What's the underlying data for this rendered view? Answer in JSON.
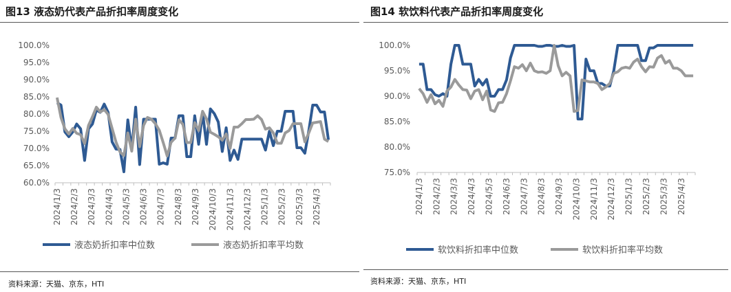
{
  "charts": [
    {
      "figure_title": "图13 液态奶代表产品折扣率周度变化",
      "source": "资料来源：天猫、京东，HTI",
      "legend": [
        "液态奶折扣率中位数",
        "液态奶折扣率平均数"
      ],
      "colors": {
        "median": "#2e5a93",
        "mean": "#9a9a9a",
        "axis": "#bfbfbf",
        "text": "#595959"
      },
      "chart_data": {
        "type": "line",
        "title": "液态奶代表产品折扣率周度变化",
        "xlabel": "",
        "ylabel": "",
        "ylim": [
          0.6,
          1.0
        ],
        "yticks": [
          "60.0%",
          "65.0%",
          "70.0%",
          "75.0%",
          "80.0%",
          "85.0%",
          "90.0%",
          "95.0%",
          "100.0%"
        ],
        "x_tick_labels": [
          "2024/1/3",
          "2024/2/3",
          "2024/3/3",
          "2024/4/3",
          "2024/5/3",
          "2024/6/3",
          "2024/7/3",
          "2024/8/3",
          "2024/9/3",
          "2024/10/3",
          "2024/11/3",
          "2024/12/3",
          "2025/1/3",
          "2025/2/3",
          "2025/3/3",
          "2025/4/3"
        ],
        "n_points": 70,
        "series": [
          {
            "name": "液态奶折扣率中位数",
            "values": [
              0.833,
              0.826,
              0.748,
              0.734,
              0.748,
              0.771,
              0.757,
              0.665,
              0.757,
              0.771,
              0.812,
              0.805,
              0.829,
              0.805,
              0.719,
              0.698,
              0.697,
              0.632,
              0.783,
              0.697,
              0.82,
              0.653,
              0.785,
              0.785,
              0.785,
              0.785,
              0.654,
              0.658,
              0.654,
              0.73,
              0.73,
              0.795,
              0.795,
              0.676,
              0.676,
              0.795,
              0.712,
              0.805,
              0.712,
              0.815,
              0.801,
              0.777,
              0.691,
              0.76,
              0.665,
              0.695,
              0.668,
              0.727,
              0.727,
              0.727,
              0.727,
              0.727,
              0.727,
              0.695,
              0.75,
              0.708,
              0.75,
              0.75,
              0.808,
              0.808,
              0.808,
              0.702,
              0.702,
              0.686,
              0.751,
              0.826,
              0.826,
              0.806,
              0.806,
              0.725
            ]
          },
          {
            "name": "液态奶折扣率平均数",
            "values": [
              0.848,
              0.79,
              0.757,
              0.742,
              0.758,
              0.744,
              0.74,
              0.714,
              0.767,
              0.792,
              0.82,
              0.806,
              0.813,
              0.799,
              0.758,
              0.718,
              0.69,
              0.679,
              0.745,
              0.692,
              0.785,
              0.705,
              0.767,
              0.79,
              0.785,
              0.772,
              0.753,
              0.717,
              0.678,
              0.718,
              0.73,
              0.783,
              0.77,
              0.717,
              0.717,
              0.775,
              0.752,
              0.808,
              0.786,
              0.747,
              0.741,
              0.734,
              0.724,
              0.742,
              0.7,
              0.762,
              0.762,
              0.772,
              0.784,
              0.784,
              0.785,
              0.795,
              0.784,
              0.756,
              0.76,
              0.745,
              0.715,
              0.715,
              0.745,
              0.752,
              0.772,
              0.772,
              0.772,
              0.719,
              0.745,
              0.774,
              0.776,
              0.778,
              0.727,
              0.72
            ]
          }
        ]
      }
    },
    {
      "figure_title": "图14 软饮料代表产品折扣率周度变化",
      "source": "资料来源：天猫、京东，HTI",
      "legend": [
        "软饮料折扣率中位数",
        "软饮料折扣率平均数"
      ],
      "colors": {
        "median": "#2e5a93",
        "mean": "#9a9a9a",
        "axis": "#bfbfbf",
        "text": "#595959"
      },
      "chart_data": {
        "type": "line",
        "title": "软饮料代表产品折扣率周度变化",
        "xlabel": "",
        "ylabel": "",
        "ylim": [
          0.75,
          1.0
        ],
        "yticks": [
          "75.0%",
          "80.0%",
          "85.0%",
          "90.0%",
          "95.0%",
          "100.0%"
        ],
        "x_tick_labels": [
          "2024/1/3",
          "2024/2/3",
          "2024/3/3",
          "2024/4/3",
          "2024/5/3",
          "2024/6/3",
          "2024/7/3",
          "2024/8/3",
          "2024/9/3",
          "2024/10/3",
          "2024/11/3",
          "2024/12/3",
          "2025/1/3",
          "2025/2/3",
          "2025/3/3",
          "2025/4/3"
        ],
        "n_points": 70,
        "series": [
          {
            "name": "软饮料折扣率中位数",
            "values": [
              0.963,
              0.963,
              0.913,
              0.913,
              0.903,
              0.9,
              0.905,
              0.9,
              0.963,
              1.0,
              1.0,
              0.963,
              0.963,
              0.963,
              0.92,
              0.933,
              0.922,
              0.933,
              0.9,
              0.9,
              0.913,
              0.913,
              0.932,
              0.975,
              1.0,
              1.0,
              1.0,
              1.0,
              1.0,
              1.0,
              0.998,
              0.998,
              1.0,
              1.0,
              0.998,
              0.998,
              1.0,
              0.998,
              0.998,
              1.0,
              0.855,
              0.855,
              0.973,
              0.95,
              0.95,
              0.925,
              0.925,
              0.92,
              0.92,
              0.95,
              1.0,
              1.0,
              1.0,
              1.0,
              1.0,
              1.0,
              0.97,
              0.97,
              0.995,
              0.995,
              1.0,
              1.0,
              1.0,
              1.0,
              1.0,
              1.0,
              1.0,
              1.0,
              1.0,
              1.0
            ]
          },
          {
            "name": "软饮料折扣率平均数",
            "values": [
              0.915,
              0.905,
              0.888,
              0.903,
              0.885,
              0.892,
              0.88,
              0.91,
              0.918,
              0.933,
              0.922,
              0.913,
              0.912,
              0.895,
              0.91,
              0.913,
              0.893,
              0.91,
              0.873,
              0.87,
              0.887,
              0.888,
              0.905,
              0.93,
              0.958,
              0.955,
              0.962,
              0.95,
              0.965,
              0.95,
              0.947,
              0.948,
              0.945,
              0.95,
              1.0,
              0.96,
              0.94,
              0.947,
              0.94,
              0.87,
              0.872,
              0.932,
              0.93,
              0.928,
              0.928,
              0.925,
              0.913,
              0.918,
              0.925,
              0.945,
              0.948,
              0.955,
              0.957,
              0.955,
              0.967,
              0.973,
              0.958,
              0.948,
              0.958,
              0.957,
              0.975,
              0.98,
              0.965,
              0.97,
              0.955,
              0.955,
              0.95,
              0.94,
              0.94,
              0.94
            ]
          }
        ]
      }
    }
  ]
}
